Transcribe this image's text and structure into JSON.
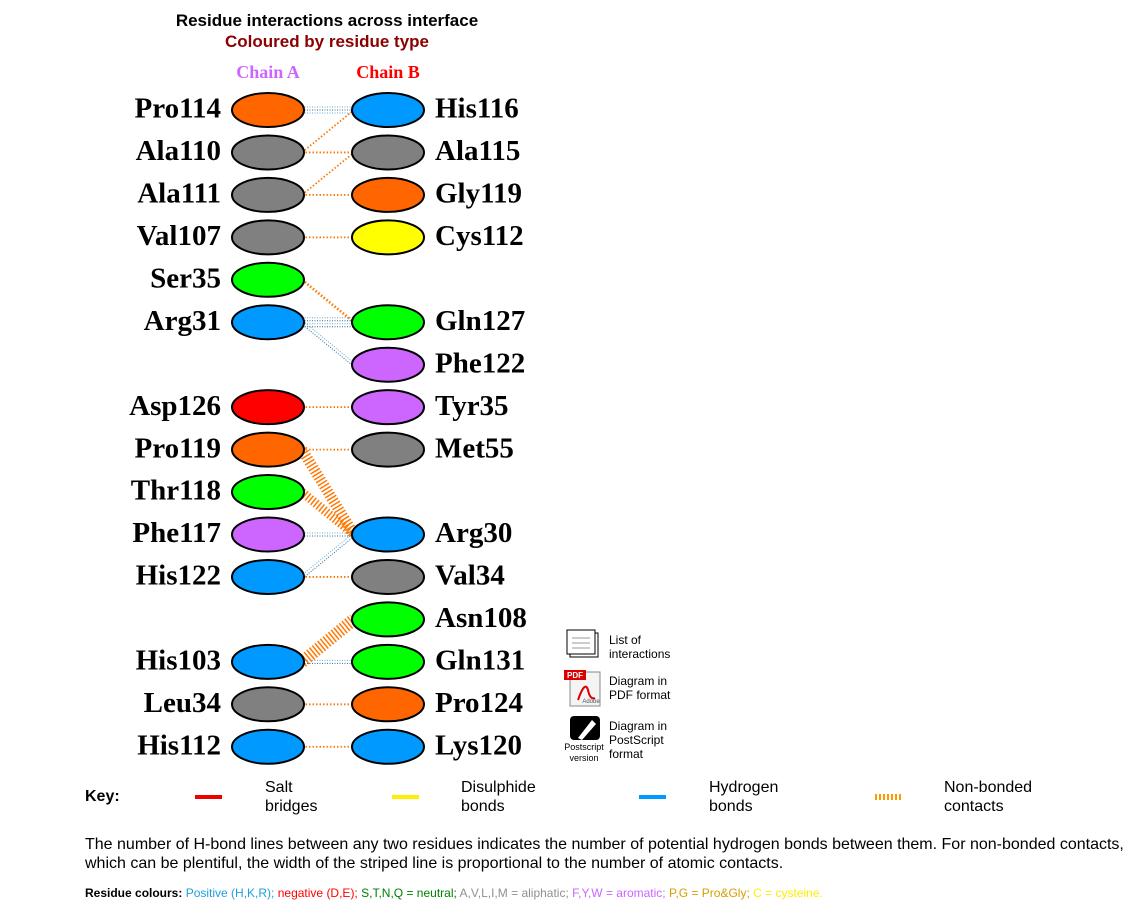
{
  "title": "Residue interactions across interface",
  "subtitle": "Coloured by residue type",
  "chain_a": {
    "label": "Chain A",
    "residues": [
      "Pro114",
      "Ala110",
      "Ala111",
      "Val107",
      "Ser35",
      "Arg31",
      "Asp126",
      "Pro119",
      "Thr118",
      "Phe117",
      "His122",
      "His103",
      "Leu34",
      "His112"
    ]
  },
  "chain_b": {
    "label": "Chain B",
    "residues": [
      "His116",
      "Ala115",
      "Gly119",
      "Cys112",
      "Gln127",
      "Phe122",
      "Tyr35",
      "Met55",
      "Arg30",
      "Val34",
      "Asn108",
      "Gln131",
      "Pro124",
      "Lys120"
    ]
  },
  "links": [
    {
      "label": "List of interactions"
    },
    {
      "label": "Diagram in PDF format",
      "icon_text": [
        "PDF",
        "Adobe"
      ]
    },
    {
      "label": "Diagram in PostScript format",
      "icon_text": [
        "Postscript version"
      ]
    }
  ],
  "key": {
    "label": "Key:",
    "items": [
      "Salt bridges",
      "Disulphide bonds",
      "Hydrogen bonds",
      "Non-bonded contacts"
    ]
  },
  "note": "The number of H-bond lines between any two residues indicates the number of potential hydrogen bonds between them. For non-bonded contacts, which can be plentiful, the width of the striped line is proportional to the number of atomic contacts.",
  "residue_colours": {
    "label": "Residue colours:",
    "items": [
      "Positive (H,K,R);",
      "negative (D,E);",
      "S,T,N,Q = neutral;",
      "A,V,L,I,M = aliphatic;",
      "F,Y,W = aromatic;",
      "P,G = Pro&Gly;",
      "C = cysteine."
    ]
  }
}
